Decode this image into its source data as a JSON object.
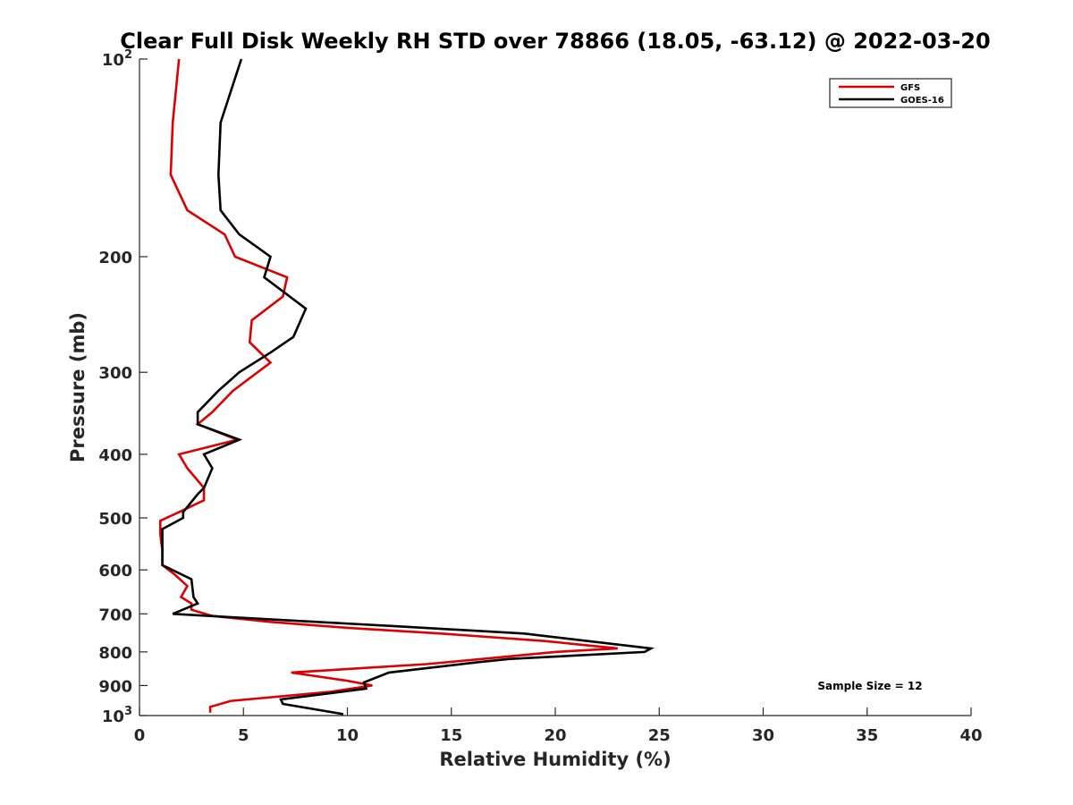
{
  "chart_data": {
    "type": "line",
    "title": "Clear Full Disk Weekly RH STD over 78866 (18.05, -63.12) @ 2022-03-20",
    "xlabel": "Relative Humidity (%)",
    "ylabel": "Pressure (mb)",
    "xlim": [
      0,
      40
    ],
    "ylim": [
      100,
      1000
    ],
    "y_scale": "log",
    "y_reversed": true,
    "grid": false,
    "legend_position": "top-right",
    "x_ticks": [
      "0",
      "5",
      "10",
      "15",
      "20",
      "25",
      "30",
      "35",
      "40"
    ],
    "y_ticks": [
      {
        "value": 100,
        "label": "10",
        "exp": "2"
      },
      {
        "value": 200,
        "label": "200"
      },
      {
        "value": 300,
        "label": "300"
      },
      {
        "value": 400,
        "label": "400"
      },
      {
        "value": 500,
        "label": "500"
      },
      {
        "value": 600,
        "label": "600"
      },
      {
        "value": 700,
        "label": "700"
      },
      {
        "value": 800,
        "label": "800"
      },
      {
        "value": 900,
        "label": "900"
      },
      {
        "value": 1000,
        "label": "10",
        "exp": "3"
      }
    ],
    "annotation": "Sample Size = 12",
    "series": [
      {
        "name": "GFS",
        "color": "#dd0000",
        "points": [
          [
            1.9,
            100
          ],
          [
            1.6,
            125
          ],
          [
            1.5,
            150
          ],
          [
            2.3,
            170
          ],
          [
            4.1,
            185
          ],
          [
            4.6,
            200
          ],
          [
            7.1,
            215
          ],
          [
            6.9,
            230
          ],
          [
            5.4,
            250
          ],
          [
            5.3,
            270
          ],
          [
            6.3,
            290
          ],
          [
            4.5,
            320
          ],
          [
            3.5,
            345
          ],
          [
            2.8,
            360
          ],
          [
            4.7,
            380
          ],
          [
            1.9,
            400
          ],
          [
            2.3,
            420
          ],
          [
            3.1,
            450
          ],
          [
            3.1,
            470
          ],
          [
            1.9,
            490
          ],
          [
            1.0,
            505
          ],
          [
            1.0,
            530
          ],
          [
            1.1,
            560
          ],
          [
            1.1,
            590
          ],
          [
            1.7,
            610
          ],
          [
            2.3,
            635
          ],
          [
            2.0,
            660
          ],
          [
            2.5,
            675
          ],
          [
            2.5,
            690
          ],
          [
            3.5,
            705
          ],
          [
            6.3,
            720
          ],
          [
            10.0,
            735
          ],
          [
            14.5,
            750
          ],
          [
            19.5,
            770
          ],
          [
            23.0,
            790
          ],
          [
            20.0,
            800
          ],
          [
            16.5,
            820
          ],
          [
            13.8,
            835
          ],
          [
            7.3,
            860
          ],
          [
            10.0,
            885
          ],
          [
            11.2,
            900
          ],
          [
            9.2,
            920
          ],
          [
            4.4,
            950
          ],
          [
            3.4,
            970
          ],
          [
            3.4,
            990
          ]
        ]
      },
      {
        "name": "GOES-16",
        "color": "#000000",
        "points": [
          [
            4.9,
            100
          ],
          [
            3.9,
            125
          ],
          [
            3.8,
            150
          ],
          [
            3.9,
            170
          ],
          [
            4.8,
            185
          ],
          [
            6.3,
            200
          ],
          [
            6.0,
            215
          ],
          [
            8.0,
            240
          ],
          [
            7.4,
            265
          ],
          [
            6.3,
            280
          ],
          [
            4.8,
            300
          ],
          [
            3.8,
            320
          ],
          [
            2.8,
            345
          ],
          [
            2.8,
            360
          ],
          [
            4.8,
            380
          ],
          [
            3.1,
            400
          ],
          [
            3.5,
            420
          ],
          [
            3.1,
            450
          ],
          [
            2.8,
            460
          ],
          [
            2.1,
            490
          ],
          [
            2.1,
            500
          ],
          [
            1.1,
            520
          ],
          [
            1.1,
            560
          ],
          [
            1.1,
            590
          ],
          [
            2.5,
            620
          ],
          [
            2.6,
            660
          ],
          [
            2.8,
            675
          ],
          [
            1.6,
            700
          ],
          [
            5.0,
            710
          ],
          [
            12.0,
            730
          ],
          [
            18.5,
            750
          ],
          [
            24.6,
            790
          ],
          [
            24.3,
            800
          ],
          [
            17.8,
            820
          ],
          [
            16.2,
            830
          ],
          [
            12.0,
            860
          ],
          [
            10.8,
            890
          ],
          [
            10.9,
            910
          ],
          [
            6.8,
            945
          ],
          [
            6.9,
            960
          ],
          [
            9.8,
            995
          ]
        ]
      }
    ]
  }
}
